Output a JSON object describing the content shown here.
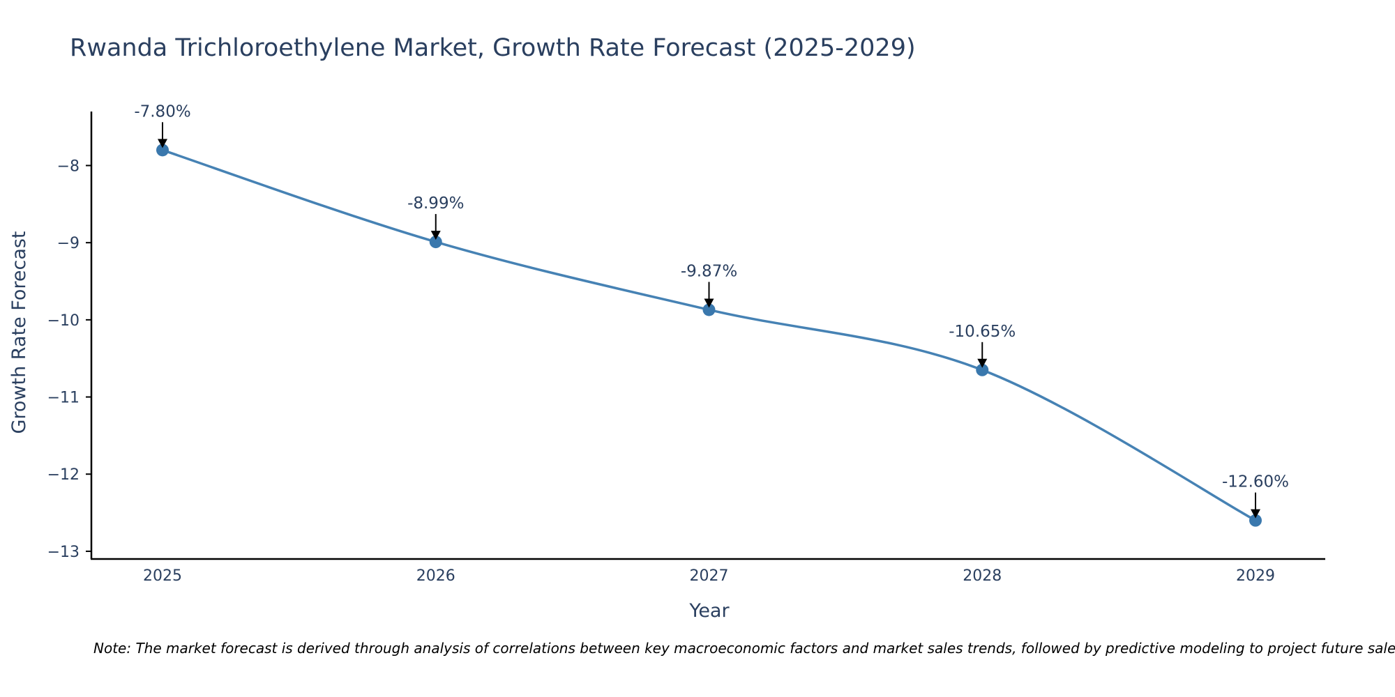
{
  "chart_data": {
    "type": "line",
    "title": "Rwanda Trichloroethylene Market, Growth Rate Forecast (2025-2029)",
    "xlabel": "Year",
    "ylabel": "Growth Rate Forecast",
    "categories": [
      "2025",
      "2026",
      "2027",
      "2028",
      "2029"
    ],
    "values": [
      -7.8,
      -8.99,
      -9.87,
      -10.65,
      -12.6
    ],
    "data_labels": [
      "-7.80%",
      "-8.99%",
      "-9.87%",
      "-10.65%",
      "-12.60%"
    ],
    "y_ticks": [
      -8,
      -9,
      -10,
      -11,
      -12,
      -13
    ],
    "y_tick_labels": [
      "−8",
      "−9",
      "−10",
      "−11",
      "−12",
      "−13"
    ],
    "ylim": [
      -13.1,
      -7.3
    ],
    "grid": false,
    "line_color": "#4682b4",
    "marker_color": "#3a78ad",
    "text_color": "#2a3f5f"
  },
  "note": "Note: The market forecast is derived through analysis of correlations between key macroeconomic factors and market sales trends, followed by predictive modeling to project future sales."
}
